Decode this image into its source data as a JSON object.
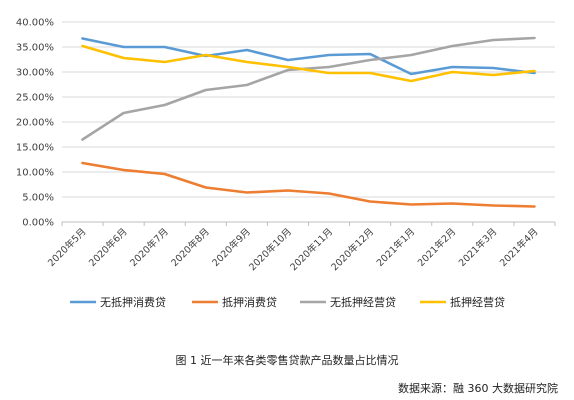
{
  "caption": "图 1 近一年来各类零售贷款产品数量占比情况",
  "source": "数据来源：融 360 大数据研究院",
  "chart_data": {
    "type": "line",
    "categories": [
      "2020年5月",
      "2020年6月",
      "2020年7月",
      "2020年8月",
      "2020年9月",
      "2020年10月",
      "2020年11月",
      "2020年12月",
      "2021年1月",
      "2021年2月",
      "2021年3月",
      "2021年4月"
    ],
    "y_tick_labels": [
      "0.00%",
      "5.00%",
      "10.00%",
      "15.00%",
      "20.00%",
      "25.00%",
      "30.00%",
      "35.00%",
      "40.00%"
    ],
    "ylim": [
      0,
      40
    ],
    "grid": "horizontal",
    "legend_position": "bottom",
    "series": [
      {
        "name": "无抵押消费贷",
        "color": "#5B9BD5",
        "values": [
          36.7,
          35.0,
          35.0,
          33.2,
          34.4,
          32.4,
          33.4,
          33.6,
          29.6,
          31.0,
          30.8,
          29.8
        ]
      },
      {
        "name": "抵押消费贷",
        "color": "#ED7D31",
        "values": [
          11.8,
          10.4,
          9.6,
          6.9,
          5.9,
          6.3,
          5.7,
          4.1,
          3.5,
          3.7,
          3.3,
          3.1
        ]
      },
      {
        "name": "无抵押经营贷",
        "color": "#A5A5A5",
        "values": [
          16.5,
          21.8,
          23.4,
          26.4,
          27.4,
          30.4,
          31.0,
          32.4,
          33.4,
          35.2,
          36.4,
          36.8
        ]
      },
      {
        "name": "抵押经营贷",
        "color": "#FFC000",
        "values": [
          35.2,
          32.8,
          32.0,
          33.4,
          32.0,
          31.0,
          29.8,
          29.8,
          28.2,
          30.0,
          29.4,
          30.2
        ]
      }
    ]
  }
}
